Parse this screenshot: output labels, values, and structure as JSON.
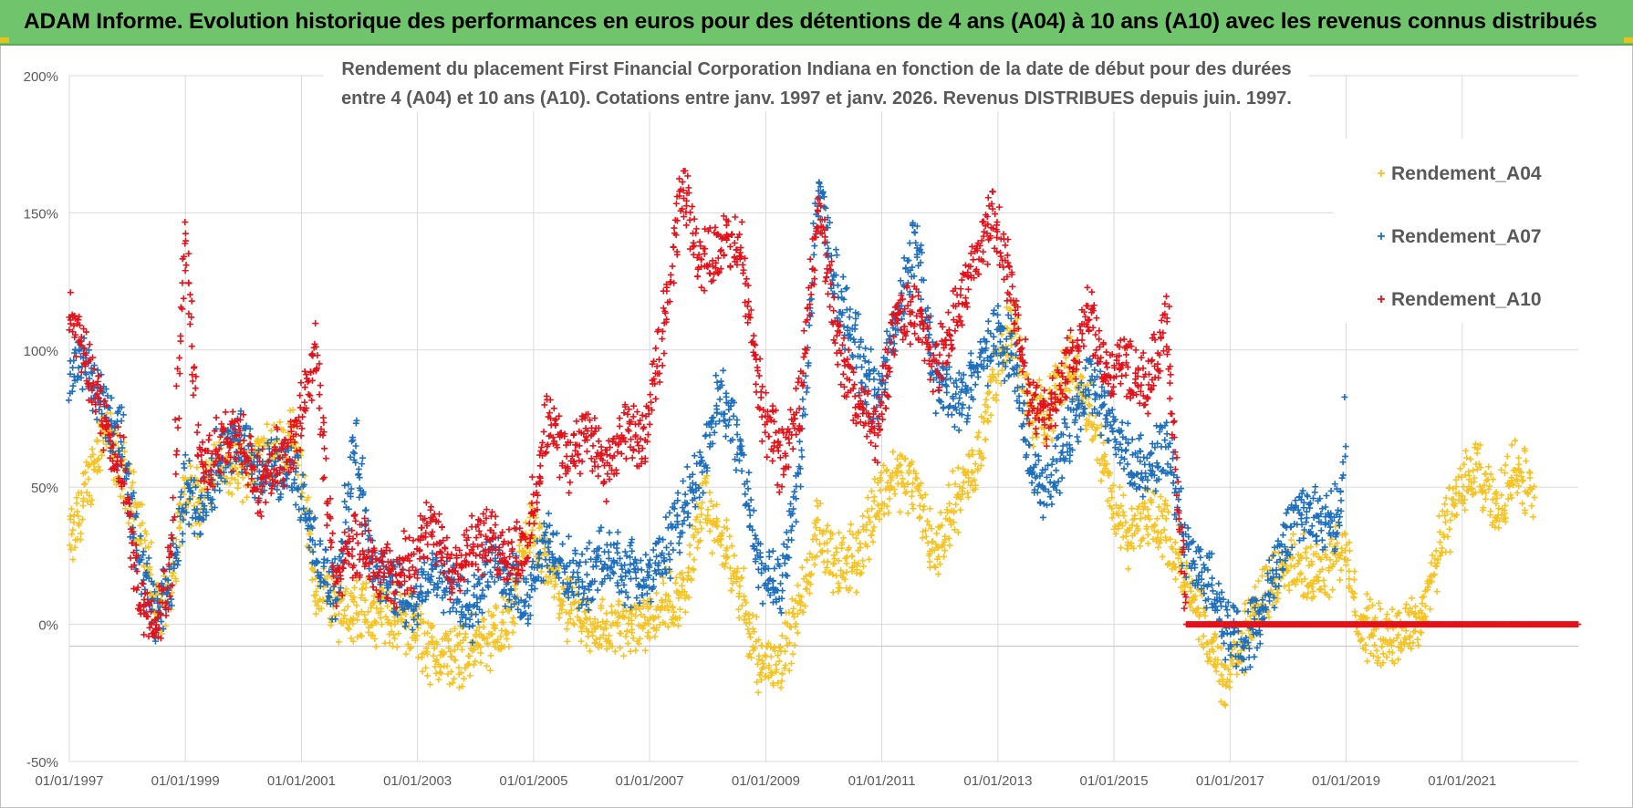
{
  "banner": {
    "title": "ADAM Informe. Evolution historique des performances en euros pour des détentions de 4 ans (A04) à 10 ans (A10) avec les revenus connus distribués"
  },
  "colors": {
    "banner_bg": "#70c46b",
    "A04": "#f5c324",
    "A07": "#1f6fbd",
    "A10": "#e3131b",
    "grid": "#d9d9d9",
    "axis_text": "#595959"
  },
  "chart_data": {
    "type": "scatter",
    "title_line1": "Rendement du placement First Financial Corporation Indiana en fonction de la date de début pour des durées",
    "title_line2": "entre 4 (A04) et 10 ans (A10). Cotations entre janv. 1997 et janv. 2026. Revenus DISTRIBUES depuis juin. 1997.",
    "xlabel": "",
    "ylabel": "",
    "x_range": [
      "1997-01-01",
      "2023-01-01"
    ],
    "ylim": [
      -50,
      200
    ],
    "y_ticks": [
      -50,
      0,
      50,
      100,
      150,
      200
    ],
    "y_tick_labels": [
      "-50%",
      "0%",
      "50%",
      "100%",
      "150%",
      "200%"
    ],
    "x_ticks": [
      "1997-01-01",
      "1999-01-01",
      "2001-01-01",
      "2003-01-01",
      "2005-01-01",
      "2007-01-01",
      "2009-01-01",
      "2011-01-01",
      "2013-01-01",
      "2015-01-01",
      "2017-01-01",
      "2019-01-01",
      "2021-01-01"
    ],
    "x_tick_labels": [
      "01/01/1997",
      "01/01/1999",
      "01/01/2001",
      "01/01/2003",
      "01/01/2005",
      "01/01/2007",
      "01/01/2009",
      "01/01/2011",
      "01/01/2013",
      "01/01/2015",
      "01/01/2017",
      "01/01/2019",
      "01/01/2021"
    ],
    "grid": true,
    "legend_position": "right",
    "marker": "+",
    "series": [
      {
        "name": "Rendement_A04",
        "color": "#f5c324",
        "points": [
          [
            "1997-01-01",
            28
          ],
          [
            "1997-04-01",
            45
          ],
          [
            "1997-08-01",
            72
          ],
          [
            "1997-12-01",
            55
          ],
          [
            "1998-04-01",
            35
          ],
          [
            "1998-07-01",
            5
          ],
          [
            "1998-10-01",
            12
          ],
          [
            "1999-01-01",
            50
          ],
          [
            "1999-04-01",
            45
          ],
          [
            "1999-08-01",
            62
          ],
          [
            "1999-12-01",
            55
          ],
          [
            "2000-04-01",
            60
          ],
          [
            "2000-08-01",
            62
          ],
          [
            "2000-12-01",
            70
          ],
          [
            "2001-04-01",
            12
          ],
          [
            "2001-08-01",
            8
          ],
          [
            "2001-12-01",
            5
          ],
          [
            "2002-04-01",
            4
          ],
          [
            "2002-08-01",
            3
          ],
          [
            "2002-12-01",
            0
          ],
          [
            "2003-04-01",
            -10
          ],
          [
            "2003-08-01",
            -12
          ],
          [
            "2003-12-01",
            -8
          ],
          [
            "2004-04-01",
            -5
          ],
          [
            "2004-08-01",
            0
          ],
          [
            "2004-12-01",
            35
          ],
          [
            "2005-04-01",
            20
          ],
          [
            "2005-08-01",
            5
          ],
          [
            "2005-12-01",
            0
          ],
          [
            "2006-04-01",
            -2
          ],
          [
            "2006-08-01",
            0
          ],
          [
            "2006-12-01",
            2
          ],
          [
            "2007-04-01",
            8
          ],
          [
            "2007-08-01",
            10
          ],
          [
            "2007-12-01",
            45
          ],
          [
            "2008-04-01",
            30
          ],
          [
            "2008-08-01",
            10
          ],
          [
            "2008-12-01",
            -15
          ],
          [
            "2009-04-01",
            -12
          ],
          [
            "2009-08-01",
            5
          ],
          [
            "2009-12-01",
            35
          ],
          [
            "2010-04-01",
            20
          ],
          [
            "2010-08-01",
            25
          ],
          [
            "2010-12-01",
            45
          ],
          [
            "2011-04-01",
            55
          ],
          [
            "2011-08-01",
            50
          ],
          [
            "2011-12-01",
            25
          ],
          [
            "2012-04-01",
            45
          ],
          [
            "2012-08-01",
            55
          ],
          [
            "2012-12-01",
            90
          ],
          [
            "2013-04-01",
            110
          ],
          [
            "2013-08-01",
            75
          ],
          [
            "2013-12-01",
            80
          ],
          [
            "2014-04-01",
            95
          ],
          [
            "2014-08-01",
            80
          ],
          [
            "2014-12-01",
            50
          ],
          [
            "2015-04-01",
            30
          ],
          [
            "2015-08-01",
            40
          ],
          [
            "2015-12-01",
            35
          ],
          [
            "2016-04-01",
            15
          ],
          [
            "2016-08-01",
            -5
          ],
          [
            "2016-12-01",
            -20
          ],
          [
            "2017-04-01",
            -5
          ],
          [
            "2017-08-01",
            10
          ],
          [
            "2017-12-01",
            25
          ],
          [
            "2018-04-01",
            20
          ],
          [
            "2018-08-01",
            20
          ],
          [
            "2018-12-01",
            30
          ],
          [
            "2019-04-01",
            0
          ],
          [
            "2019-08-01",
            -5
          ],
          [
            "2019-12-01",
            -3
          ],
          [
            "2020-04-01",
            0
          ],
          [
            "2020-08-01",
            25
          ],
          [
            "2020-12-01",
            50
          ],
          [
            "2021-04-01",
            55
          ],
          [
            "2021-08-01",
            40
          ],
          [
            "2021-12-01",
            58
          ],
          [
            "2022-04-01",
            45
          ]
        ]
      },
      {
        "name": "Rendement_A07",
        "color": "#1f6fbd",
        "points": [
          [
            "1997-01-01",
            90
          ],
          [
            "1997-04-01",
            95
          ],
          [
            "1997-08-01",
            80
          ],
          [
            "1997-12-01",
            65
          ],
          [
            "1998-04-01",
            20
          ],
          [
            "1998-07-01",
            5
          ],
          [
            "1998-10-01",
            15
          ],
          [
            "1999-01-01",
            50
          ],
          [
            "1999-04-01",
            40
          ],
          [
            "1999-08-01",
            60
          ],
          [
            "1999-12-01",
            70
          ],
          [
            "2000-04-01",
            55
          ],
          [
            "2000-08-01",
            58
          ],
          [
            "2000-12-01",
            55
          ],
          [
            "2001-04-01",
            25
          ],
          [
            "2001-08-01",
            10
          ],
          [
            "2001-12-01",
            65
          ],
          [
            "2002-04-01",
            20
          ],
          [
            "2002-08-01",
            15
          ],
          [
            "2002-12-01",
            5
          ],
          [
            "2003-04-01",
            20
          ],
          [
            "2003-08-01",
            15
          ],
          [
            "2003-12-01",
            5
          ],
          [
            "2004-04-01",
            25
          ],
          [
            "2004-08-01",
            15
          ],
          [
            "2004-12-01",
            10
          ],
          [
            "2005-04-01",
            30
          ],
          [
            "2005-08-01",
            20
          ],
          [
            "2005-12-01",
            15
          ],
          [
            "2006-04-01",
            25
          ],
          [
            "2006-08-01",
            20
          ],
          [
            "2006-12-01",
            15
          ],
          [
            "2007-04-01",
            25
          ],
          [
            "2007-08-01",
            40
          ],
          [
            "2007-12-01",
            60
          ],
          [
            "2008-04-01",
            85
          ],
          [
            "2008-08-01",
            60
          ],
          [
            "2008-12-01",
            20
          ],
          [
            "2009-04-01",
            10
          ],
          [
            "2009-08-01",
            55
          ],
          [
            "2009-12-01",
            160
          ],
          [
            "2010-04-01",
            120
          ],
          [
            "2010-08-01",
            100
          ],
          [
            "2010-12-01",
            80
          ],
          [
            "2011-04-01",
            110
          ],
          [
            "2011-08-01",
            140
          ],
          [
            "2011-12-01",
            90
          ],
          [
            "2012-04-01",
            80
          ],
          [
            "2012-08-01",
            90
          ],
          [
            "2012-12-01",
            105
          ],
          [
            "2013-04-01",
            100
          ],
          [
            "2013-08-01",
            55
          ],
          [
            "2013-12-01",
            50
          ],
          [
            "2014-04-01",
            70
          ],
          [
            "2014-08-01",
            90
          ],
          [
            "2014-12-01",
            75
          ],
          [
            "2015-04-01",
            60
          ],
          [
            "2015-08-01",
            55
          ],
          [
            "2015-12-01",
            65
          ],
          [
            "2016-04-01",
            25
          ],
          [
            "2016-08-01",
            20
          ],
          [
            "2016-12-01",
            0
          ],
          [
            "2017-04-01",
            -5
          ],
          [
            "2017-08-01",
            5
          ],
          [
            "2017-12-01",
            30
          ],
          [
            "2018-04-01",
            45
          ],
          [
            "2018-08-01",
            35
          ],
          [
            "2018-12-01",
            40
          ],
          [
            "2019-01-01",
            80
          ]
        ]
      },
      {
        "name": "Rendement_A10",
        "color": "#e3131b",
        "points": [
          [
            "1997-01-01",
            110
          ],
          [
            "1997-04-01",
            100
          ],
          [
            "1997-08-01",
            75
          ],
          [
            "1997-12-01",
            55
          ],
          [
            "1998-04-01",
            5
          ],
          [
            "1998-07-01",
            0
          ],
          [
            "1998-10-01",
            20
          ],
          [
            "1999-01-01",
            145
          ],
          [
            "1999-04-01",
            55
          ],
          [
            "1999-08-01",
            65
          ],
          [
            "1999-12-01",
            70
          ],
          [
            "2000-04-01",
            50
          ],
          [
            "2000-08-01",
            60
          ],
          [
            "2000-12-01",
            70
          ],
          [
            "2001-04-01",
            100
          ],
          [
            "2001-08-01",
            15
          ],
          [
            "2001-12-01",
            30
          ],
          [
            "2002-04-01",
            25
          ],
          [
            "2002-08-01",
            15
          ],
          [
            "2002-12-01",
            25
          ],
          [
            "2003-04-01",
            35
          ],
          [
            "2003-08-01",
            20
          ],
          [
            "2003-12-01",
            30
          ],
          [
            "2004-04-01",
            30
          ],
          [
            "2004-08-01",
            25
          ],
          [
            "2004-12-01",
            30
          ],
          [
            "2005-04-01",
            75
          ],
          [
            "2005-08-01",
            60
          ],
          [
            "2005-12-01",
            70
          ],
          [
            "2006-04-01",
            55
          ],
          [
            "2006-08-01",
            70
          ],
          [
            "2006-12-01",
            65
          ],
          [
            "2007-04-01",
            110
          ],
          [
            "2007-08-01",
            160
          ],
          [
            "2007-12-01",
            130
          ],
          [
            "2008-04-01",
            140
          ],
          [
            "2008-08-01",
            135
          ],
          [
            "2008-12-01",
            80
          ],
          [
            "2009-04-01",
            60
          ],
          [
            "2009-08-01",
            80
          ],
          [
            "2009-12-01",
            155
          ],
          [
            "2010-04-01",
            100
          ],
          [
            "2010-08-01",
            80
          ],
          [
            "2010-12-01",
            70
          ],
          [
            "2011-04-01",
            110
          ],
          [
            "2011-08-01",
            115
          ],
          [
            "2011-12-01",
            95
          ],
          [
            "2012-04-01",
            110
          ],
          [
            "2012-08-01",
            130
          ],
          [
            "2012-12-01",
            150
          ],
          [
            "2013-04-01",
            120
          ],
          [
            "2013-08-01",
            80
          ],
          [
            "2013-12-01",
            75
          ],
          [
            "2014-04-01",
            95
          ],
          [
            "2014-08-01",
            115
          ],
          [
            "2014-12-01",
            90
          ],
          [
            "2015-04-01",
            95
          ],
          [
            "2015-08-01",
            85
          ],
          [
            "2015-12-01",
            110
          ],
          [
            "2016-04-01",
            0
          ],
          [
            "2023-01-01",
            0
          ]
        ]
      }
    ]
  }
}
